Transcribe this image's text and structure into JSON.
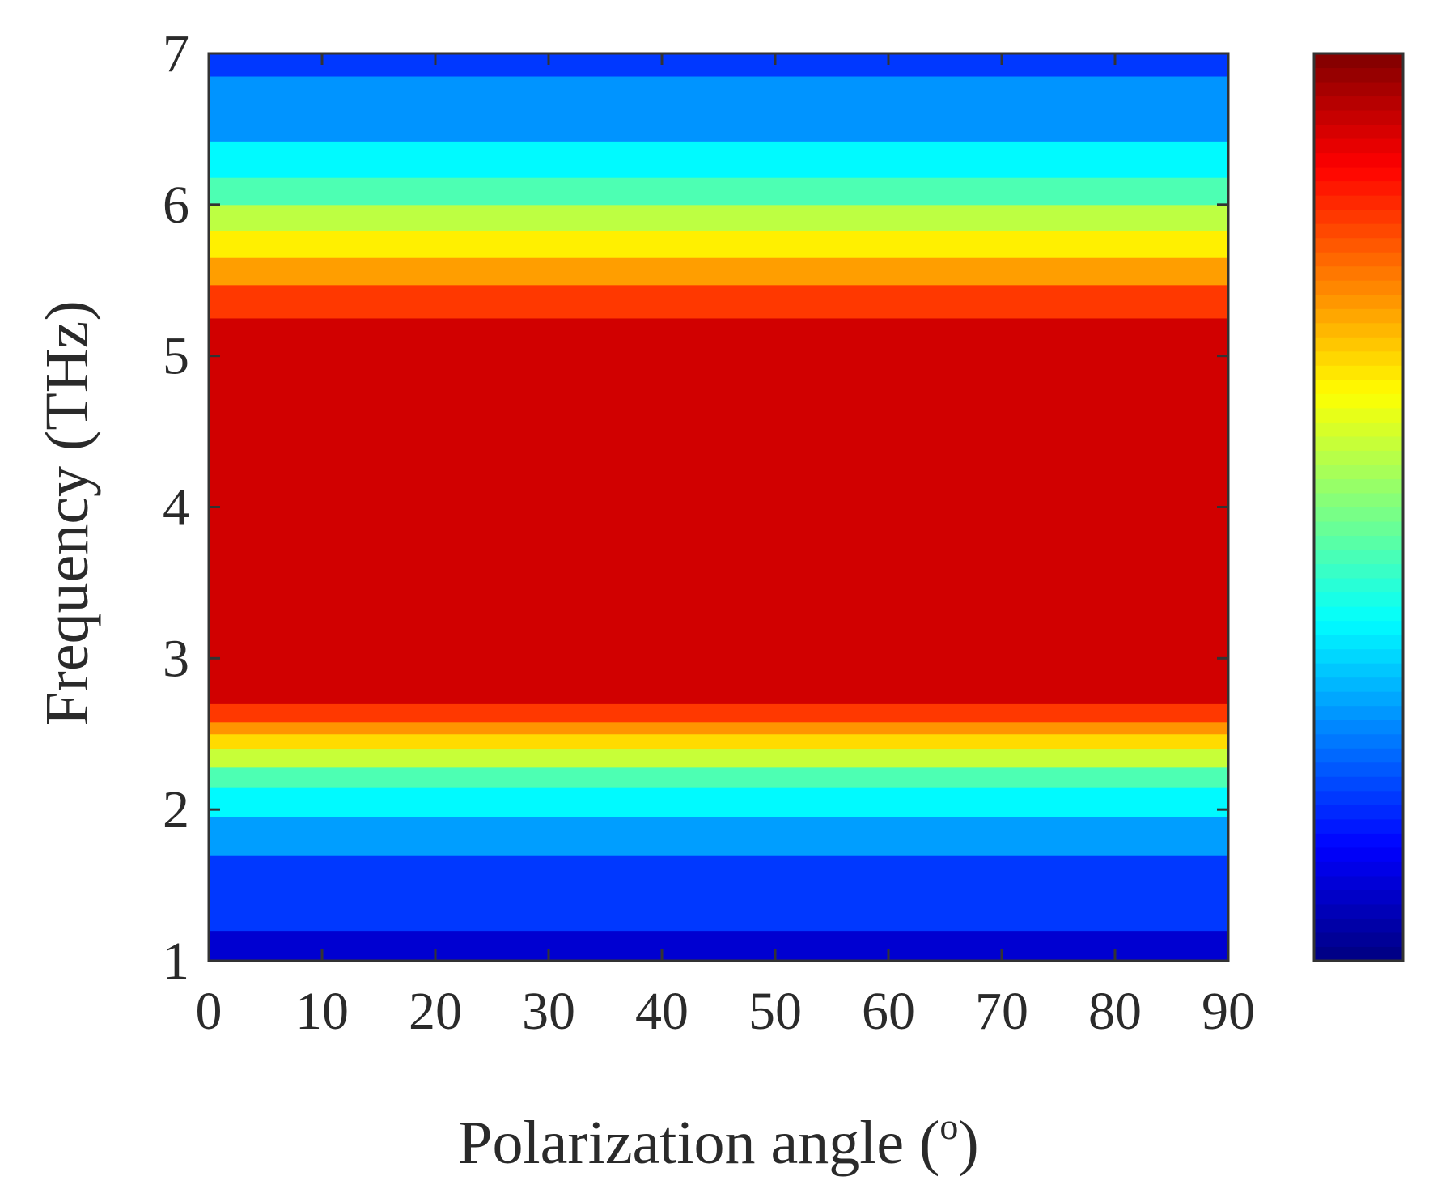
{
  "chart_data": {
    "type": "heatmap",
    "title": "",
    "xlabel": "Polarization angle (",
    "xlabel_superscript": "o",
    "xlabel_suffix": ")",
    "ylabel": "Frequency (THz)",
    "xlim": [
      0,
      90
    ],
    "ylim": [
      1,
      7
    ],
    "x_ticks": [
      "0",
      "10",
      "20",
      "30",
      "40",
      "50",
      "60",
      "70",
      "80",
      "90"
    ],
    "y_ticks": [
      "1",
      "2",
      "3",
      "4",
      "5",
      "6",
      "7"
    ],
    "x_tick_values": [
      0,
      10,
      20,
      30,
      40,
      50,
      60,
      70,
      80,
      90
    ],
    "y_tick_values": [
      1,
      2,
      3,
      4,
      5,
      6,
      7
    ],
    "colormap": "jet",
    "colorbar": {
      "shown": true,
      "range": [
        0,
        1
      ],
      "tick_labels": []
    },
    "bands": [
      {
        "from": 1.0,
        "to": 1.2,
        "value": 0.08
      },
      {
        "from": 1.2,
        "to": 1.7,
        "value": 0.18
      },
      {
        "from": 1.7,
        "to": 1.95,
        "value": 0.28
      },
      {
        "from": 1.95,
        "to": 2.15,
        "value": 0.37
      },
      {
        "from": 2.15,
        "to": 2.28,
        "value": 0.45
      },
      {
        "from": 2.28,
        "to": 2.4,
        "value": 0.57
      },
      {
        "from": 2.4,
        "to": 2.5,
        "value": 0.66
      },
      {
        "from": 2.5,
        "to": 2.58,
        "value": 0.73
      },
      {
        "from": 2.58,
        "to": 2.7,
        "value": 0.82
      },
      {
        "from": 2.7,
        "to": 5.25,
        "value": 0.92
      },
      {
        "from": 5.25,
        "to": 5.47,
        "value": 0.82
      },
      {
        "from": 5.47,
        "to": 5.65,
        "value": 0.72
      },
      {
        "from": 5.65,
        "to": 5.83,
        "value": 0.64
      },
      {
        "from": 5.83,
        "to": 6.0,
        "value": 0.56
      },
      {
        "from": 6.0,
        "to": 6.18,
        "value": 0.45
      },
      {
        "from": 6.18,
        "to": 6.42,
        "value": 0.37
      },
      {
        "from": 6.42,
        "to": 6.85,
        "value": 0.27
      },
      {
        "from": 6.85,
        "to": 7.0,
        "value": 0.18
      }
    ],
    "grid": false,
    "legend": "none"
  }
}
